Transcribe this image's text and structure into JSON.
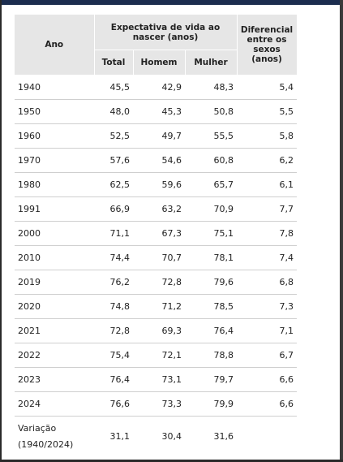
{
  "table": {
    "header": {
      "year": "Ano",
      "life": "Expectativa de vida ao nascer (anos)",
      "diff": "Diferencial entre os sexos (anos)",
      "total": "Total",
      "men": "Homem",
      "women": "Mulher"
    },
    "rows": [
      [
        "1940",
        "45,5",
        "42,9",
        "48,3",
        "5,4"
      ],
      [
        "1950",
        "48,0",
        "45,3",
        "50,8",
        "5,5"
      ],
      [
        "1960",
        "52,5",
        "49,7",
        "55,5",
        "5,8"
      ],
      [
        "1970",
        "57,6",
        "54,6",
        "60,8",
        "6,2"
      ],
      [
        "1980",
        "62,5",
        "59,6",
        "65,7",
        "6,1"
      ],
      [
        "1991",
        "66,9",
        "63,2",
        "70,9",
        "7,7"
      ],
      [
        "2000",
        "71,1",
        "67,3",
        "75,1",
        "7,8"
      ],
      [
        "2010",
        "74,4",
        "70,7",
        "78,1",
        "7,4"
      ],
      [
        "2019",
        "76,2",
        "72,8",
        "79,6",
        "6,8"
      ],
      [
        "2020",
        "74,8",
        "71,2",
        "78,5",
        "7,3"
      ],
      [
        "2021",
        "72,8",
        "69,3",
        "76,4",
        "7,1"
      ],
      [
        "2022",
        "75,4",
        "72,1",
        "78,8",
        "6,7"
      ],
      [
        "2023",
        "76,4",
        "73,1",
        "79,7",
        "6,6"
      ],
      [
        "2024",
        "76,6",
        "73,3",
        "79,9",
        "6,6"
      ],
      [
        "Variação (1940/2024)",
        "31,1",
        "30,4",
        "31,6"
      ]
    ]
  }
}
